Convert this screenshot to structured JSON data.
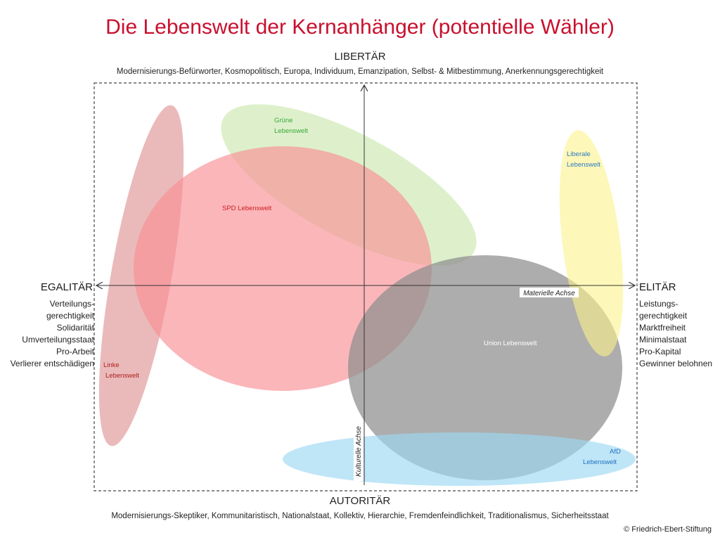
{
  "title": "Die Lebenswelt der Kernanhänger (potentielle Wähler)",
  "top": {
    "label": "LIBERTÄR",
    "description": "Modernisierungs-Befürworter, Kosmopolitisch, Europa, Individuum, Emanzipation, Selbst- & Mitbestimmung, Anerkennungsgerechtigkeit"
  },
  "bottom": {
    "label": "AUTORITÄR",
    "description": "Modernisierungs-Skeptiker, Kommunitaristisch, Nationalstaat, Kollektiv, Hierarchie, Fremdenfeindlichkeit, Traditionalismus, Sicherheitsstaat"
  },
  "left": {
    "label": "EGALITÄR",
    "items": [
      "Verteilungs-",
      "gerechtigkeit",
      "Solidarität",
      "Umverteilungsstaat",
      "Pro-Arbeit",
      "Verlierer entschädigen"
    ]
  },
  "right": {
    "label": "ELITÄR",
    "items": [
      "Leistungs-",
      "gerechtigkeit",
      "Marktfreiheit",
      "Minimalstaat",
      "Pro-Kapital",
      "Gewinner belohnen"
    ]
  },
  "axes": {
    "horizontal": "Materielle Achse",
    "vertical": "Kulturelle Achse"
  },
  "groups": {
    "gruene": {
      "line1": "Grüne",
      "line2": "Lebenswelt",
      "color": "#c6e6a8",
      "text_color": "#3aa93a"
    },
    "spd": {
      "line1": "SPD Lebenswelt",
      "color": "#f98f95",
      "text_color": "#cc1f1f"
    },
    "linke": {
      "line1": "Linke",
      "line2": "Lebenswelt",
      "color": "#dc8c8c",
      "text_color": "#b01e1e"
    },
    "liberale": {
      "line1": "Liberale",
      "line2": "Lebenswelt",
      "color": "#fbf48a",
      "text_color": "#2f79c2"
    },
    "union": {
      "line1": "Union Lebenswelt",
      "color": "#8e8e8e",
      "text_color": "#ffffff"
    },
    "afd": {
      "line1": "AfD",
      "line2": "Lebenswelt",
      "color": "#9dd9f2",
      "text_color": "#1f6fc0"
    }
  },
  "copyright": "© Friedrich-Ebert-Stiftung"
}
